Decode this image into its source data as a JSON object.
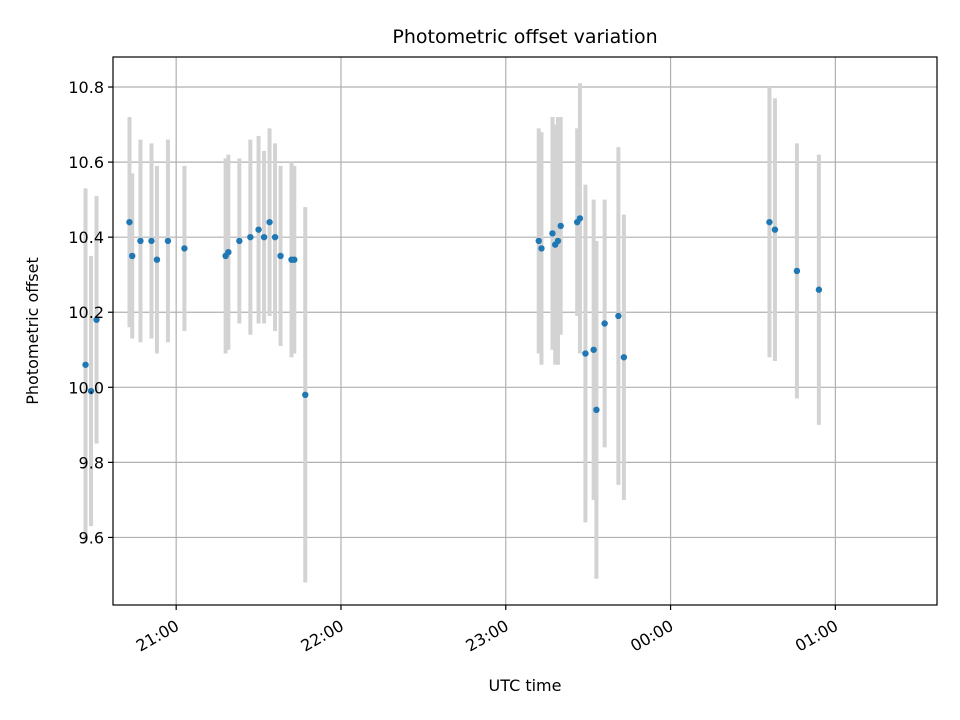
{
  "chart_data": {
    "type": "scatter",
    "title": "Photometric offset variation",
    "xlabel": "UTC time",
    "ylabel": "Photometric offset",
    "xlim": [
      "20:37",
      "01:37"
    ],
    "ylim": [
      9.42,
      10.88
    ],
    "x_ticks": [
      "21:00",
      "22:00",
      "23:00",
      "00:00",
      "01:00"
    ],
    "y_ticks": [
      9.6,
      9.8,
      10.0,
      10.2,
      10.4,
      10.6,
      10.8
    ],
    "grid": true,
    "point_color": "#1f77b4",
    "errorbar_color": "#d3d3d3",
    "series": [
      {
        "points": [
          {
            "x": "20:27",
            "y": 10.06,
            "err": 0.47
          },
          {
            "x": "20:29",
            "y": 9.99,
            "err": 0.36
          },
          {
            "x": "20:31",
            "y": 10.18,
            "err": 0.33
          },
          {
            "x": "20:43",
            "y": 10.44,
            "err": 0.28
          },
          {
            "x": "20:44",
            "y": 10.35,
            "err": 0.22
          },
          {
            "x": "20:47",
            "y": 10.39,
            "err": 0.27
          },
          {
            "x": "20:51",
            "y": 10.39,
            "err": 0.26
          },
          {
            "x": "20:53",
            "y": 10.34,
            "err": 0.25
          },
          {
            "x": "20:57",
            "y": 10.39,
            "err": 0.27
          },
          {
            "x": "21:03",
            "y": 10.37,
            "err": 0.22
          },
          {
            "x": "21:18",
            "y": 10.35,
            "err": 0.26
          },
          {
            "x": "21:19",
            "y": 10.36,
            "err": 0.26
          },
          {
            "x": "21:23",
            "y": 10.39,
            "err": 0.22
          },
          {
            "x": "21:27",
            "y": 10.4,
            "err": 0.26
          },
          {
            "x": "21:30",
            "y": 10.42,
            "err": 0.25
          },
          {
            "x": "21:32",
            "y": 10.4,
            "err": 0.23
          },
          {
            "x": "21:34",
            "y": 10.44,
            "err": 0.25
          },
          {
            "x": "21:36",
            "y": 10.4,
            "err": 0.25
          },
          {
            "x": "21:38",
            "y": 10.35,
            "err": 0.24
          },
          {
            "x": "21:42",
            "y": 10.34,
            "err": 0.26
          },
          {
            "x": "21:43",
            "y": 10.34,
            "err": 0.25
          },
          {
            "x": "21:47",
            "y": 9.98,
            "err": 0.5
          },
          {
            "x": "23:12",
            "y": 10.39,
            "err": 0.3
          },
          {
            "x": "23:13",
            "y": 10.37,
            "err": 0.31
          },
          {
            "x": "23:17",
            "y": 10.41,
            "err": 0.31
          },
          {
            "x": "23:18",
            "y": 10.38,
            "err": 0.32
          },
          {
            "x": "23:19",
            "y": 10.39,
            "err": 0.33
          },
          {
            "x": "23:20",
            "y": 10.43,
            "err": 0.29
          },
          {
            "x": "23:26",
            "y": 10.44,
            "err": 0.25
          },
          {
            "x": "23:27",
            "y": 10.45,
            "err": 0.36
          },
          {
            "x": "23:29",
            "y": 10.09,
            "err": 0.45
          },
          {
            "x": "23:32",
            "y": 10.1,
            "err": 0.4
          },
          {
            "x": "23:33",
            "y": 9.94,
            "err": 0.45
          },
          {
            "x": "23:36",
            "y": 10.17,
            "err": 0.33
          },
          {
            "x": "23:41",
            "y": 10.19,
            "err": 0.45
          },
          {
            "x": "23:43",
            "y": 10.08,
            "err": 0.38
          },
          {
            "x": "00:36",
            "y": 10.44,
            "err": 0.36
          },
          {
            "x": "00:38",
            "y": 10.42,
            "err": 0.35
          },
          {
            "x": "00:46",
            "y": 10.31,
            "err": 0.34
          },
          {
            "x": "00:54",
            "y": 10.26,
            "err": 0.36
          }
        ]
      }
    ]
  }
}
